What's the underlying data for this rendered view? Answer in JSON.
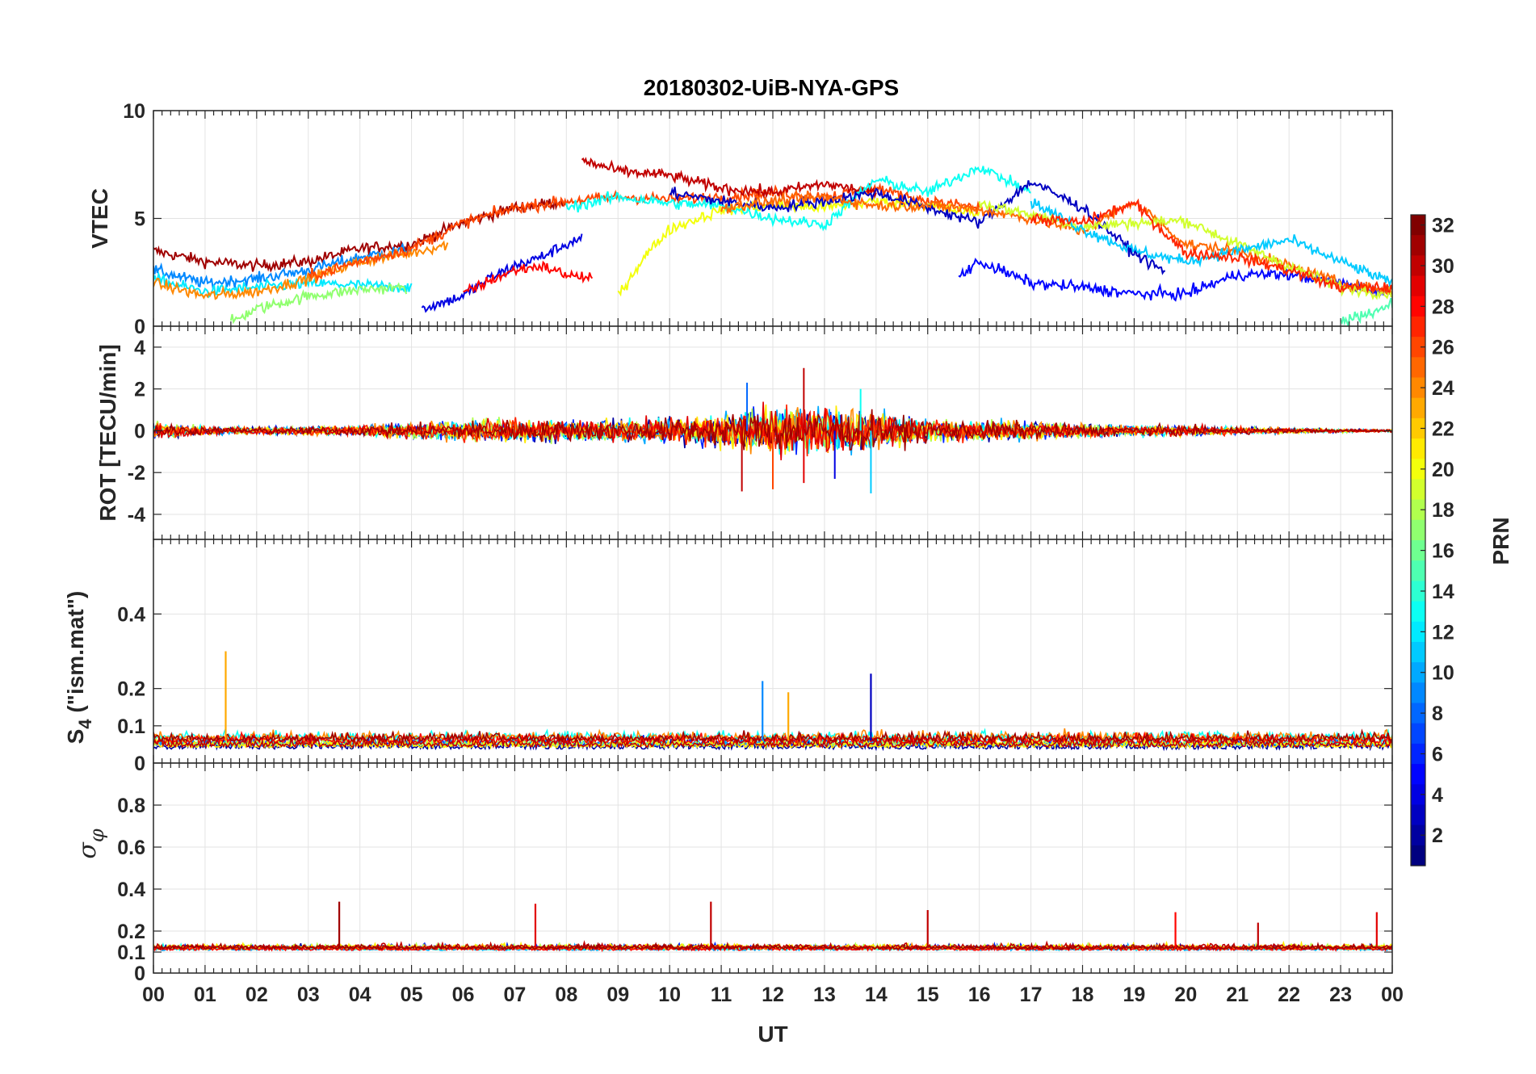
{
  "chart_data": {
    "type": "line",
    "title": "20180302-UiB-NYA-GPS",
    "xlabel": "UT",
    "x_tick_labels": [
      "00",
      "01",
      "02",
      "03",
      "04",
      "05",
      "06",
      "07",
      "08",
      "09",
      "10",
      "11",
      "12",
      "13",
      "14",
      "15",
      "16",
      "17",
      "18",
      "19",
      "20",
      "21",
      "22",
      "23",
      "00"
    ],
    "xlim": [
      0,
      24
    ],
    "grid": true,
    "colorbar": {
      "label": "PRN",
      "range": [
        1,
        32
      ],
      "ticks": [
        2,
        4,
        6,
        8,
        10,
        12,
        14,
        16,
        18,
        20,
        22,
        24,
        26,
        28,
        30,
        32
      ],
      "colormap": "jet"
    },
    "panels": [
      {
        "ylabel": "VTEC",
        "ylim": [
          0,
          10
        ],
        "yticks": [
          0,
          5,
          10
        ],
        "series_approx": [
          {
            "prn": 31,
            "x": [
              0,
              1,
              2,
              3,
              4,
              5,
              6,
              7,
              8
            ],
            "y": [
              3.5,
              3.0,
              2.8,
              3.0,
              3.6,
              3.8,
              4.8,
              5.5,
              5.8
            ]
          },
          {
            "prn": 9,
            "x": [
              0,
              1,
              2,
              3,
              4,
              5
            ],
            "y": [
              2.6,
              2.0,
              2.2,
              2.6,
              3.2,
              3.6
            ]
          },
          {
            "prn": 12,
            "x": [
              0,
              1,
              2,
              3,
              4,
              5
            ],
            "y": [
              2.2,
              1.6,
              1.8,
              2.0,
              1.9,
              1.8
            ]
          },
          {
            "prn": 17,
            "x": [
              1.5,
              2,
              3,
              4,
              4.9
            ],
            "y": [
              0.2,
              0.8,
              1.4,
              1.7,
              1.8
            ]
          },
          {
            "prn": 24,
            "x": [
              0,
              1,
              2,
              3,
              4,
              5,
              5.7
            ],
            "y": [
              2.0,
              1.4,
              1.6,
              2.2,
              3.0,
              3.4,
              3.8
            ]
          },
          {
            "prn": 4,
            "x": [
              5.2,
              6,
              6.5,
              7,
              7.5,
              8,
              8.3
            ],
            "y": [
              0.8,
              1.4,
              2.2,
              2.8,
              3.2,
              3.8,
              4.1
            ]
          },
          {
            "prn": 28,
            "x": [
              6,
              6.5,
              7,
              7.5,
              8,
              8.5
            ],
            "y": [
              1.5,
              2.1,
              2.6,
              2.8,
              2.4,
              2.2
            ]
          },
          {
            "prn": 26,
            "x": [
              3,
              4,
              5,
              6,
              7,
              8,
              9,
              10,
              11,
              12,
              13,
              14,
              15,
              16
            ],
            "y": [
              2.3,
              3.0,
              3.6,
              4.8,
              5.5,
              5.8,
              6.0,
              5.9,
              6.0,
              6.2,
              6.0,
              6.4,
              5.8,
              5.5
            ]
          },
          {
            "prn": 30,
            "x": [
              8.3,
              9,
              10,
              11,
              12,
              13,
              14
            ],
            "y": [
              7.7,
              7.2,
              7.0,
              6.4,
              6.2,
              6.6,
              6.2
            ]
          },
          {
            "prn": 20,
            "x": [
              9,
              9.5,
              10,
              11,
              12,
              13,
              14,
              15,
              16
            ],
            "y": [
              1.4,
              3.2,
              4.5,
              5.4,
              5.6,
              5.5,
              5.8,
              5.6,
              5.2
            ]
          },
          {
            "prn": 13,
            "x": [
              8,
              9,
              10,
              11,
              12,
              13,
              14,
              15,
              16,
              17
            ],
            "y": [
              5.5,
              6.0,
              5.7,
              5.6,
              5.0,
              4.7,
              6.8,
              6.2,
              7.4,
              6.2
            ]
          },
          {
            "prn": 3,
            "x": [
              10,
              11,
              12,
              13,
              14,
              15,
              16,
              17,
              18,
              19,
              19.6
            ],
            "y": [
              6.2,
              5.8,
              5.5,
              5.8,
              6.2,
              5.5,
              4.8,
              6.7,
              5.5,
              3.4,
              2.5
            ]
          },
          {
            "prn": 5,
            "x": [
              15.6,
              16,
              17,
              18,
              19,
              20,
              21,
              22,
              23,
              24
            ],
            "y": [
              2.3,
              3.0,
              2.0,
              1.8,
              1.5,
              1.5,
              2.4,
              2.4,
              2.0,
              1.5
            ]
          },
          {
            "prn": 25,
            "x": [
              11,
              12,
              13,
              14,
              15,
              16,
              17,
              18,
              19,
              20,
              21,
              22,
              23,
              24
            ],
            "y": [
              5.5,
              5.8,
              6.0,
              5.6,
              5.6,
              5.4,
              5.0,
              4.4,
              5.8,
              3.8,
              3.5,
              2.8,
              2.0,
              1.6
            ]
          },
          {
            "prn": 19,
            "x": [
              16,
              17,
              18,
              19,
              20,
              21,
              22,
              23,
              24
            ],
            "y": [
              5.7,
              5.2,
              4.6,
              4.8,
              4.9,
              3.8,
              2.8,
              1.8,
              1.5
            ]
          },
          {
            "prn": 11,
            "x": [
              17,
              18,
              19,
              20,
              21,
              22,
              23,
              24
            ],
            "y": [
              5.8,
              4.5,
              3.5,
              3.0,
              3.5,
              4.0,
              3.0,
              2.0
            ]
          },
          {
            "prn": 15,
            "x": [
              23,
              23.5,
              24
            ],
            "y": [
              0.2,
              0.6,
              1.0
            ]
          },
          {
            "prn": 27,
            "x": [
              17,
              18,
              19,
              20,
              21,
              22,
              23,
              24
            ],
            "y": [
              5.0,
              4.8,
              5.7,
              3.4,
              3.2,
              2.6,
              1.8,
              1.8
            ]
          }
        ]
      },
      {
        "ylabel": "ROT [TECU/min]",
        "ylim": [
          -5.2,
          5
        ],
        "yticks": [
          -4,
          -2,
          0,
          2,
          4
        ],
        "envelope_approx": {
          "x": [
            0,
            1,
            2,
            3,
            4,
            5,
            6,
            7,
            8,
            9,
            10,
            11,
            12,
            13,
            14,
            15,
            16,
            17,
            18,
            19,
            20,
            21,
            22,
            23,
            24
          ],
          "amplitude": [
            0.6,
            0.3,
            0.3,
            0.3,
            0.4,
            0.6,
            0.8,
            0.9,
            0.8,
            0.8,
            1.0,
            1.3,
            1.8,
            1.9,
            1.4,
            0.9,
            0.8,
            0.7,
            0.5,
            0.4,
            0.4,
            0.3,
            0.2,
            0.15,
            0.1
          ]
        },
        "spikes": [
          {
            "x": 12.6,
            "y": 3.0
          },
          {
            "x": 11.5,
            "y": 2.3
          },
          {
            "x": 11.4,
            "y": -2.9
          },
          {
            "x": 12.0,
            "y": -2.8
          },
          {
            "x": 12.6,
            "y": -2.5
          },
          {
            "x": 13.9,
            "y": -3.0
          },
          {
            "x": 13.2,
            "y": -2.3
          },
          {
            "x": 13.7,
            "y": 2.0
          }
        ]
      },
      {
        "ylabel": "S4 (\"ism.mat\")",
        "ylim": [
          0,
          0.6
        ],
        "yticks": [
          0,
          0.1,
          0.2,
          0.4
        ],
        "baseline_approx": 0.06,
        "spikes": [
          {
            "x": 1.4,
            "y": 0.3,
            "prn": 23
          },
          {
            "x": 11.8,
            "y": 0.22,
            "prn": 9
          },
          {
            "x": 13.9,
            "y": 0.24,
            "prn": 3
          },
          {
            "x": 12.3,
            "y": 0.19,
            "prn": 23
          }
        ]
      },
      {
        "ylabel": "σφ",
        "ylim": [
          0,
          1
        ],
        "yticks": [
          0,
          0.1,
          0.2,
          0.4,
          0.6,
          0.8
        ],
        "baseline_approx": 0.12,
        "spikes": [
          {
            "x": 3.6,
            "y": 0.34,
            "prn": 31
          },
          {
            "x": 7.4,
            "y": 0.33,
            "prn": 29
          },
          {
            "x": 10.8,
            "y": 0.34,
            "prn": 30
          },
          {
            "x": 15.0,
            "y": 0.3,
            "prn": 30
          },
          {
            "x": 19.8,
            "y": 0.29,
            "prn": 28
          },
          {
            "x": 21.4,
            "y": 0.24,
            "prn": 30
          },
          {
            "x": 23.7,
            "y": 0.29,
            "prn": 29
          }
        ]
      }
    ]
  }
}
